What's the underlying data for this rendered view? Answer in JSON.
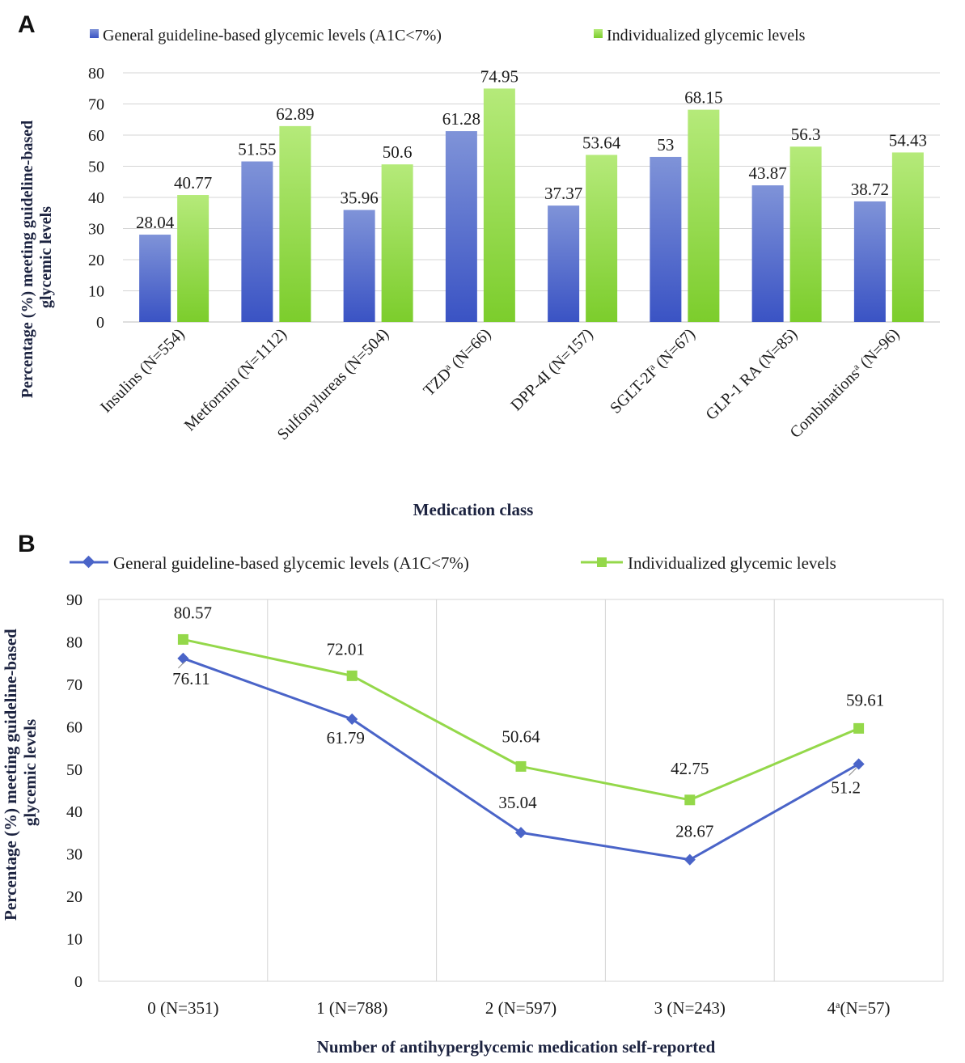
{
  "colors": {
    "blue_top": "#7f93d8",
    "blue_bottom": "#3a53c4",
    "green_top": "#b5ea7a",
    "green_bottom": "#7ccd2c",
    "line_blue": "#4a64c8",
    "line_green": "#94d84a",
    "grid": "#d4d4d4",
    "axis_text": "#1a1a1a",
    "title_text": "#1c2340"
  },
  "chart_data": [
    {
      "panel_label": "A",
      "type": "bar",
      "categories": [
        "Insulins (N=554)",
        "Metformin (N=1112)",
        "Sulfonylureas (N=504)",
        "TZD (N=66)",
        "DPP-4I (N=157)",
        "SGLT-2I (N=67)",
        "GLP-1 RA (N=85)",
        "Combinations (N=96)"
      ],
      "category_superscripts": [
        "",
        "",
        "",
        "a",
        "",
        "a",
        "",
        "a"
      ],
      "series": [
        {
          "name": "General guideline-based glycemic levels (A1C<7%)",
          "values": [
            28.04,
            51.55,
            35.96,
            61.28,
            37.37,
            53,
            43.87,
            38.72
          ],
          "labels": [
            "28.04",
            "51.55",
            "35.96",
            "61.28",
            "37.37",
            "53",
            "43.87",
            "38.72"
          ]
        },
        {
          "name": "Individualized glycemic levels",
          "values": [
            40.77,
            62.89,
            50.6,
            74.95,
            53.64,
            68.15,
            56.3,
            54.43
          ],
          "labels": [
            "40.77",
            "62.89",
            "50.6",
            "74.95",
            "53.64",
            "68.15",
            "56.3",
            "54.43"
          ]
        }
      ],
      "xlabel": "Medication class",
      "ylabel_lines": [
        "Percentage (%) meeting guideline-based",
        "glycemic levels"
      ],
      "ylim": [
        0,
        80
      ],
      "yticks": [
        "0",
        "10",
        "20",
        "30",
        "40",
        "50",
        "60",
        "70",
        "80"
      ],
      "grid": true,
      "legend": "top"
    },
    {
      "panel_label": "B",
      "type": "line",
      "categories": [
        "0 (N=351)",
        "1 (N=788)",
        "2 (N=597)",
        "3 (N=243)",
        "4 (N=57)"
      ],
      "category_superscripts": [
        "",
        "",
        "",
        "",
        "a"
      ],
      "series": [
        {
          "name": "General guideline-based glycemic levels (A1C<7%)",
          "values": [
            76.11,
            61.79,
            35.04,
            28.67,
            51.2
          ],
          "labels": [
            "76.11",
            "61.79",
            "35.04",
            "28.67",
            "51.2"
          ]
        },
        {
          "name": "Individualized glycemic levels",
          "values": [
            80.57,
            72.01,
            50.64,
            42.75,
            59.61
          ],
          "labels": [
            "80.57",
            "72.01",
            "50.64",
            "42.75",
            "59.61"
          ]
        }
      ],
      "xlabel": "Number of antihyperglycemic medication self-reported",
      "ylabel_lines": [
        "Percentage (%) meeting guideline-based",
        "glycemic levels"
      ],
      "ylim": [
        0,
        90
      ],
      "yticks": [
        "0",
        "10",
        "20",
        "30",
        "40",
        "50",
        "60",
        "70",
        "80",
        "90"
      ],
      "grid": true,
      "legend": "top"
    }
  ]
}
